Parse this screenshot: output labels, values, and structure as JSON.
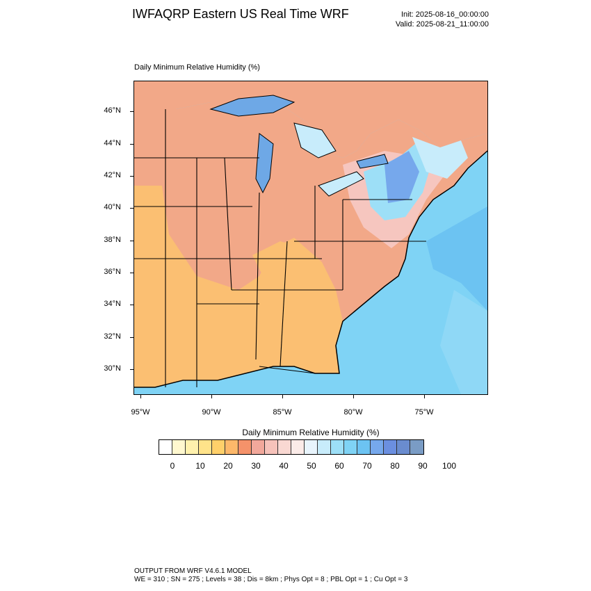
{
  "header": {
    "title": "IWFAQRP Eastern US Real Time WRF",
    "init": "Init: 2025-08-16_00:00:00",
    "valid": "Valid: 2025-08-21_11:00:00"
  },
  "map": {
    "title": "Daily Minimum Relative Humidity   (%)",
    "lat_labels": [
      "46°N",
      "44°N",
      "42°N",
      "40°N",
      "38°N",
      "36°N",
      "34°N",
      "32°N",
      "30°N"
    ],
    "lon_labels": [
      "95°W",
      "90°W",
      "85°W",
      "80°W",
      "75°W"
    ],
    "colors": {
      "land_dry": "#fbbf72",
      "land_mid": "#f2a888",
      "land_moist": "#f6c6bf",
      "ocean": "#7fd3f5",
      "ocean_deep": "#5fb8ee",
      "lake": "#6ea8e6",
      "border": "#000000"
    }
  },
  "colorbar": {
    "title": "Daily Minimum Relative Humidity   (%)",
    "labels": [
      "0",
      "10",
      "20",
      "30",
      "40",
      "50",
      "60",
      "70",
      "80",
      "90",
      "100"
    ],
    "colors": [
      "#ffffff",
      "#fff8cf",
      "#fff1ad",
      "#ffe38a",
      "#ffd06a",
      "#fdb86a",
      "#f5926a",
      "#f2a89b",
      "#f6c2ba",
      "#f9d8d2",
      "#fbebe8",
      "#e8f4fc",
      "#c8ecfb",
      "#9ddff7",
      "#7fd3f5",
      "#6cc3f2",
      "#76a8ec",
      "#6b8fe0",
      "#6a8ccf",
      "#7a9cc5"
    ]
  },
  "footer": {
    "line1": "OUTPUT FROM WRF V4.6.1 MODEL",
    "line2": "WE = 310 ; SN = 275 ; Levels = 38 ; Dis = 8km ; Phys Opt = 8 ; PBL Opt = 1 ; Cu Opt = 3"
  }
}
